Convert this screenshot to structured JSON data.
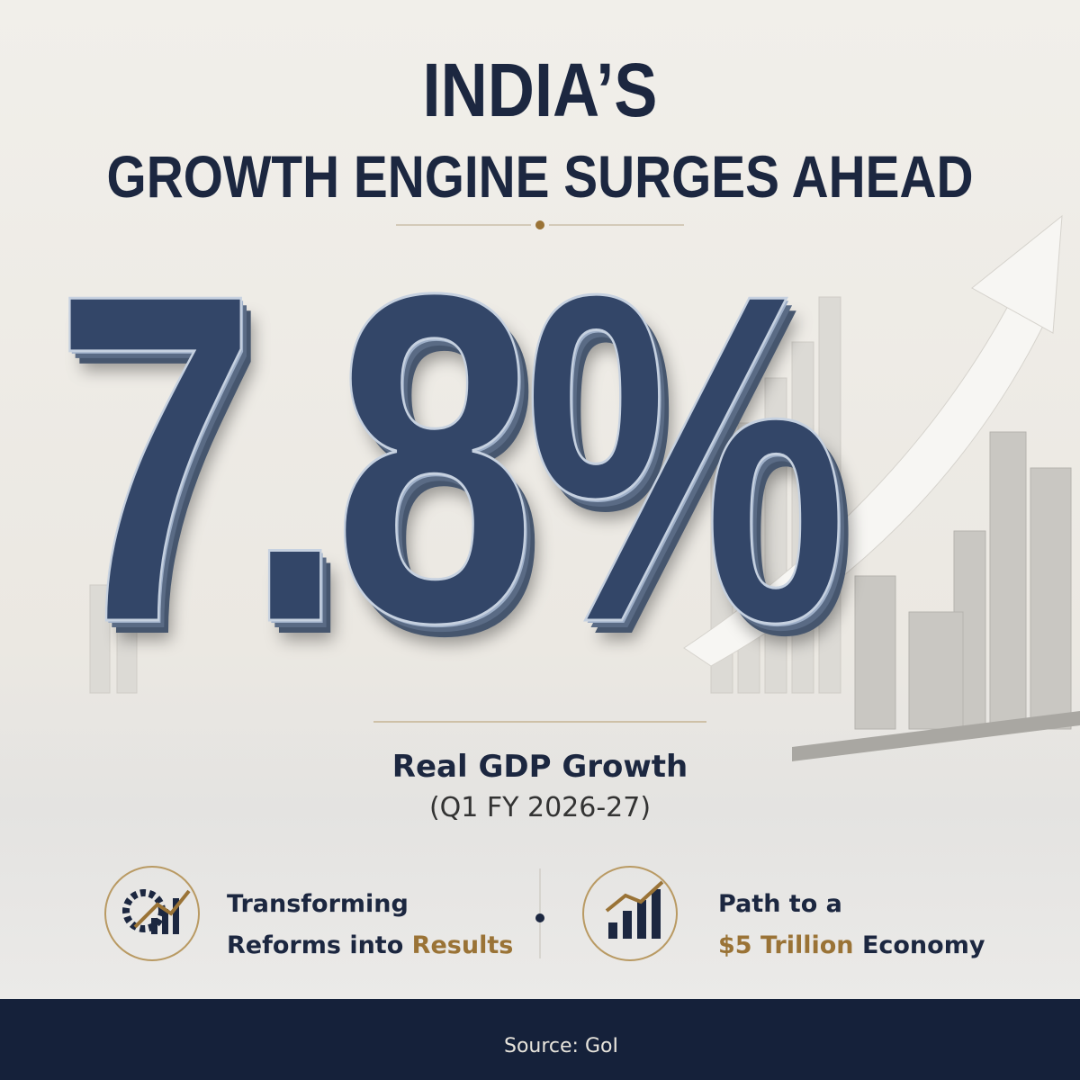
{
  "header": {
    "title_line1": "INDIA’S",
    "title_line2": "GROWTH ENGINE SURGES AHEAD"
  },
  "hero": {
    "figure": "7.8%",
    "label": "Real GDP Growth",
    "period": "(Q1 FY 2026-27)"
  },
  "features": [
    {
      "line1": "Transforming",
      "line2_plain": "Reforms into",
      "line2_highlight": "Results"
    },
    {
      "line1": "Path to a",
      "line2_highlight": "$5 Trillion",
      "line2_plain": "Economy"
    }
  ],
  "footer": {
    "source": "Source: GoI"
  }
}
